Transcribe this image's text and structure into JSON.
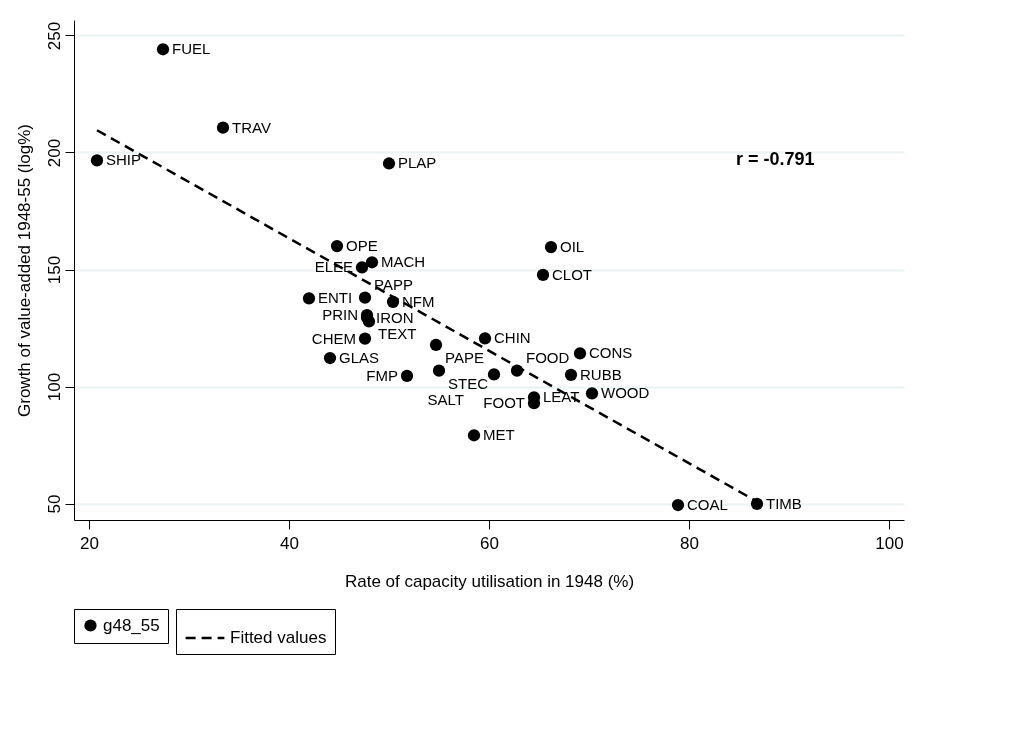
{
  "chart_data": {
    "type": "scatter",
    "xlabel": "Rate of capacity utilisation in 1948 (%)",
    "ylabel": "Growth of value-added 1948-55 (log%)",
    "xlim": [
      18.5,
      101.5
    ],
    "ylim": [
      43,
      256.6
    ],
    "xticks": [
      20,
      40,
      60,
      80,
      100
    ],
    "yticks": [
      50,
      100,
      150,
      200,
      250
    ],
    "grid": "y",
    "legend": "bottom",
    "marker": "circle",
    "annotations": [
      "r = -0.791"
    ],
    "series": [
      {
        "name": "g48_55",
        "color": "#000000",
        "x": [
          27.4,
          33.4,
          20.8,
          50.0,
          44.8,
          48.3,
          47.3,
          66.2,
          65.4,
          42.0,
          47.6,
          50.4,
          47.8,
          47.8,
          48.0,
          47.6,
          59.6,
          54.7,
          69.1,
          44.1,
          55.0,
          60.5,
          62.8,
          68.2,
          51.8,
          70.3,
          64.5,
          64.5,
          58.5,
          78.9,
          86.8
        ],
        "values": [
          244.1,
          210.6,
          196.6,
          195.3,
          160.0,
          153.1,
          150.9,
          159.6,
          147.7,
          137.7,
          138.0,
          136.2,
          130.5,
          129.5,
          127.8,
          120.5,
          120.6,
          117.8,
          114.2,
          112.2,
          106.8,
          105.2,
          106.8,
          105.0,
          104.6,
          97.1,
          95.4,
          92.9,
          79.2,
          49.4,
          49.9
        ],
        "value_labels": [
          "FUEL",
          "TRAV",
          "SHIP",
          "PLAP",
          "OPE",
          "MACH",
          "ELEE",
          "OIL",
          "CLOT",
          "ENTI",
          "PAPP",
          "NFM",
          "PRIN",
          "IRON",
          "TEXT",
          "CHEM",
          "CHIN",
          "PAPE",
          "CONS",
          "GLAS",
          "STEC",
          "SALT",
          "FOOD",
          "RUBB",
          "FMP",
          "WOOD",
          "LEAT",
          "FOOT",
          "MET",
          "COAL",
          "TIMB"
        ]
      },
      {
        "name": "Fitted values",
        "color": "#000000",
        "type": "line",
        "line_style": "dashed",
        "marker": "none",
        "x": [
          20.8,
          86.8
        ],
        "values": [
          209.5,
          50.9
        ]
      }
    ]
  }
}
